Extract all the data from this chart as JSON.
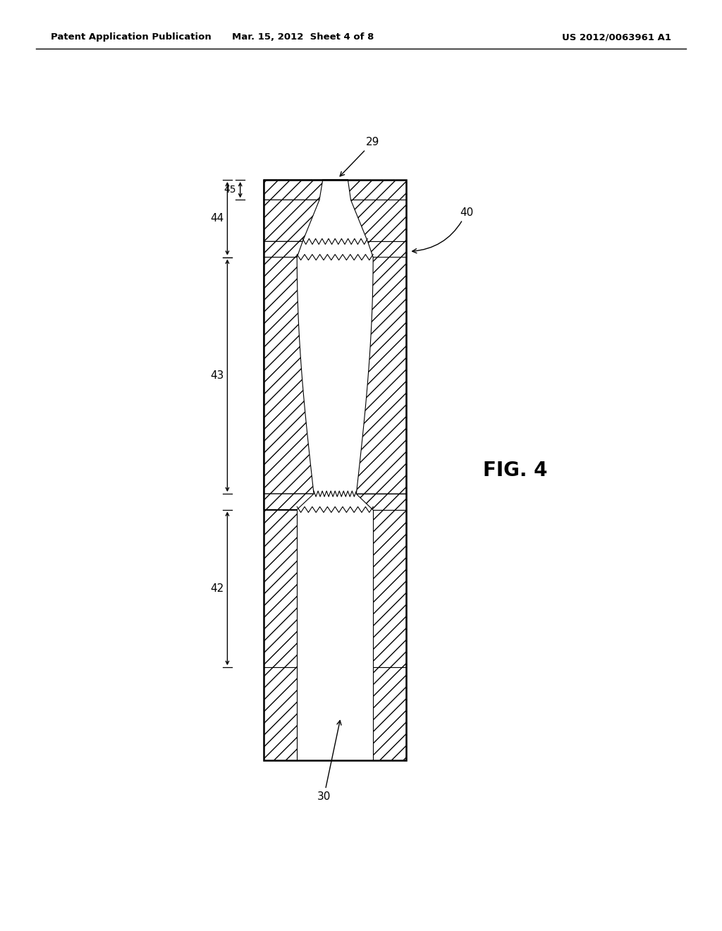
{
  "background_color": "#ffffff",
  "header_left": "Patent Application Publication",
  "header_center": "Mar. 15, 2012  Sheet 4 of 8",
  "header_right": "US 2012/0063961 A1",
  "fig_label": "FIG. 4",
  "line_color": "#000000"
}
